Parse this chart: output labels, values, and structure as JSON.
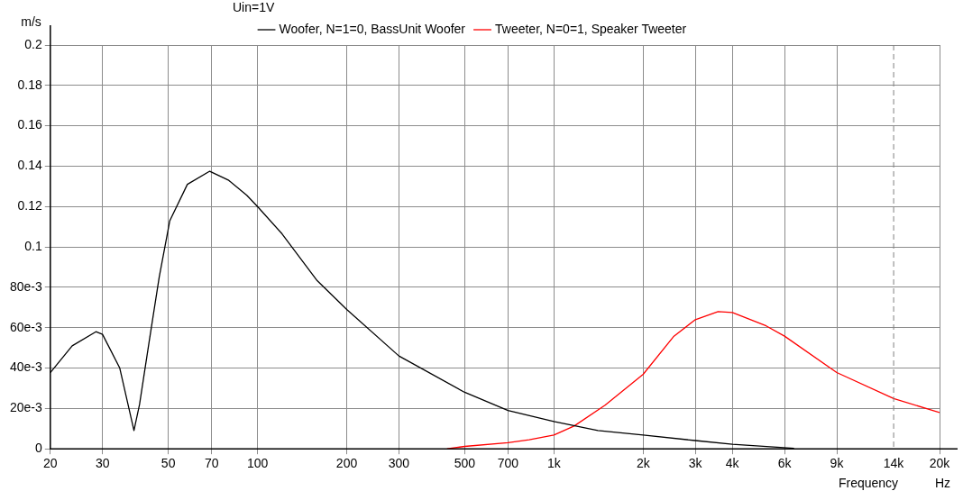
{
  "chart_data": {
    "type": "line",
    "ylabel": "m/s",
    "xlabel": "Frequency",
    "annotations": [
      "Uin=1V",
      "Hz"
    ],
    "log": "x",
    "grid": true,
    "legend": "top",
    "marker": "none",
    "line_style": "solid",
    "xlim": [
      20,
      20000
    ],
    "xticks": [
      20,
      30,
      50,
      70,
      100,
      200,
      300,
      500,
      700,
      {
        "value": 1000,
        "label": "1k"
      },
      {
        "value": 2000,
        "label": "2k"
      },
      {
        "value": 3000,
        "label": "3k"
      },
      {
        "value": 4000,
        "label": "4k"
      },
      {
        "value": 6000,
        "label": "6k"
      },
      {
        "value": 9000,
        "label": "9k"
      },
      {
        "value": 14000,
        "label": "14k"
      },
      {
        "value": 20000,
        "label": "20k"
      }
    ],
    "ylim": [
      0,
      0.2
    ],
    "yticks": [
      0,
      {
        "value": 0.02,
        "label": "20e-3"
      },
      {
        "value": 0.04,
        "label": "40e-3"
      },
      {
        "value": 0.06,
        "label": "60e-3"
      },
      {
        "value": 0.08,
        "label": "80e-3"
      },
      0.1,
      0.12,
      0.14,
      0.16,
      0.18,
      0.2
    ],
    "ref_lines": [
      {
        "axis": "x",
        "value": 14000,
        "color": "#808080",
        "line_style": "dashed"
      }
    ],
    "series": [
      {
        "name": "Woofer, N=1=0, BassUnit Woofer",
        "color": "#000000",
        "x": [
          20,
          23.7,
          28.5,
          30,
          34.3,
          38.3,
          40,
          43.3,
          46.6,
          50.6,
          58,
          69,
          80,
          92,
          100,
          121,
          159,
          200,
          300,
          500,
          700,
          1000,
          1408,
          2000,
          3000,
          4000,
          6460
        ],
        "values": [
          0.0377,
          0.051,
          0.058,
          0.0567,
          0.04,
          0.0091,
          0.022,
          0.055,
          0.085,
          0.113,
          0.131,
          0.1375,
          0.133,
          0.1256,
          0.12,
          0.1065,
          0.0833,
          0.069,
          0.046,
          0.028,
          0.019,
          0.0135,
          0.0091,
          0.0068,
          0.0041,
          0.0023,
          0.0003
        ]
      },
      {
        "name": "Tweeter, N=0=1, Speaker Tweeter",
        "color": "#ff0000",
        "x": [
          436,
          500,
          700,
          825,
          1000,
          1170,
          1488,
          2000,
          2540,
          3000,
          3580,
          4000,
          5200,
          6000,
          9000,
          14000,
          20000
        ],
        "values": [
          0,
          0.0012,
          0.003,
          0.0045,
          0.0068,
          0.0113,
          0.0216,
          0.0369,
          0.0558,
          0.064,
          0.068,
          0.0675,
          0.0609,
          0.0558,
          0.0378,
          0.0249,
          0.018
        ]
      }
    ]
  }
}
